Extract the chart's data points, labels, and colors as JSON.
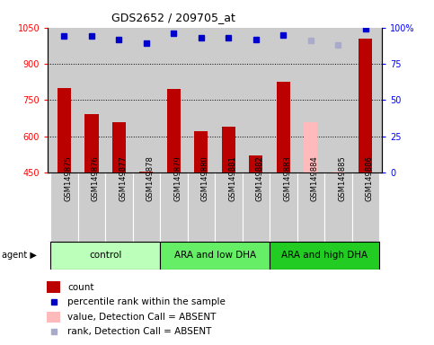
{
  "title": "GDS2652 / 209705_at",
  "samples": [
    "GSM149875",
    "GSM149876",
    "GSM149877",
    "GSM149878",
    "GSM149879",
    "GSM149880",
    "GSM149881",
    "GSM149882",
    "GSM149883",
    "GSM149884",
    "GSM149885",
    "GSM149886"
  ],
  "counts": [
    800,
    690,
    660,
    455,
    795,
    620,
    640,
    520,
    825,
    null,
    null,
    1005
  ],
  "counts_absent": [
    null,
    null,
    null,
    null,
    null,
    null,
    null,
    null,
    null,
    660,
    455,
    null
  ],
  "ranks": [
    94,
    94,
    92,
    89,
    96,
    93,
    93,
    92,
    95,
    null,
    null,
    99
  ],
  "ranks_absent": [
    null,
    null,
    null,
    null,
    null,
    null,
    null,
    null,
    null,
    91,
    88,
    null
  ],
  "groups": [
    {
      "label": "control",
      "start": 0,
      "end": 3,
      "color": "#bbffbb"
    },
    {
      "label": "ARA and low DHA",
      "start": 4,
      "end": 7,
      "color": "#66ee66"
    },
    {
      "label": "ARA and high DHA",
      "start": 8,
      "end": 11,
      "color": "#22cc22"
    }
  ],
  "ylim_left": [
    450,
    1050
  ],
  "ylim_right": [
    0,
    100
  ],
  "yticks_left": [
    450,
    600,
    750,
    900,
    1050
  ],
  "yticks_right": [
    0,
    25,
    50,
    75,
    100
  ],
  "bar_color_present": "#bb0000",
  "bar_color_absent": "#ffbbbb",
  "dot_color_present": "#0000cc",
  "dot_color_absent": "#aaaacc",
  "bg_color": "#cccccc",
  "sample_box_color": "#cccccc",
  "bar_width": 0.5
}
